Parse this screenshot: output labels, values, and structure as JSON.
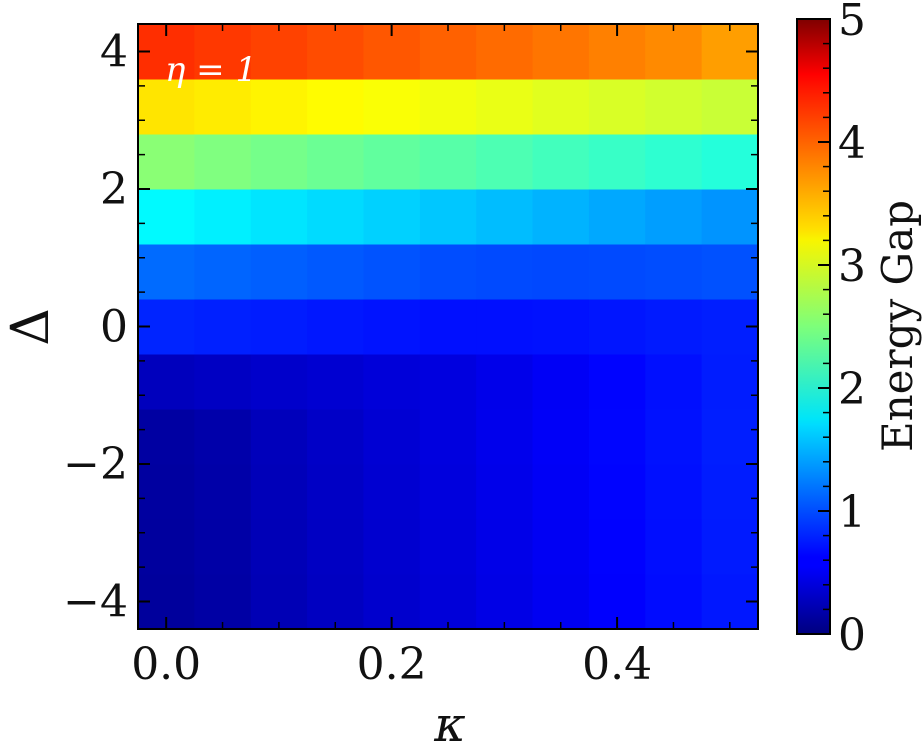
{
  "chart_data": {
    "type": "heatmap",
    "xlabel": "κ",
    "ylabel": "Δ",
    "annotation": "η = 1",
    "colorbar_label": "Energy Gap",
    "colormap": "jet",
    "clim": [
      0,
      5
    ],
    "xlim": [
      -0.025,
      0.525
    ],
    "ylim": [
      -4.4,
      4.4
    ],
    "x_ticks": [
      0.0,
      0.2,
      0.4
    ],
    "x_tick_labels": [
      "0.0",
      "0.2",
      "0.4"
    ],
    "y_ticks": [
      -4,
      -2,
      0,
      2,
      4
    ],
    "y_tick_labels": [
      "−4",
      "−2",
      "0",
      "2",
      "4"
    ],
    "colorbar_ticks": [
      0,
      1,
      2,
      3,
      4,
      5
    ],
    "colorbar_tick_labels": [
      "0",
      "1",
      "2",
      "3",
      "4",
      "5"
    ],
    "x": [
      0.0,
      0.05,
      0.1,
      0.15,
      0.2,
      0.25,
      0.3,
      0.35,
      0.4,
      0.45,
      0.5
    ],
    "y": [
      -4.0,
      -3.2,
      -2.4,
      -1.6,
      -0.8,
      0.0,
      0.8,
      1.6,
      2.4,
      3.2,
      4.0
    ],
    "z": [
      [
        0.14,
        0.18,
        0.26,
        0.32,
        0.38,
        0.44,
        0.5,
        0.56,
        0.62,
        0.68,
        0.74
      ],
      [
        0.15,
        0.19,
        0.27,
        0.33,
        0.39,
        0.45,
        0.51,
        0.57,
        0.63,
        0.69,
        0.75
      ],
      [
        0.16,
        0.2,
        0.28,
        0.34,
        0.4,
        0.46,
        0.52,
        0.58,
        0.64,
        0.7,
        0.76
      ],
      [
        0.17,
        0.21,
        0.29,
        0.35,
        0.41,
        0.47,
        0.53,
        0.59,
        0.65,
        0.71,
        0.77
      ],
      [
        0.3,
        0.33,
        0.37,
        0.4,
        0.44,
        0.47,
        0.52,
        0.58,
        0.64,
        0.7,
        0.76
      ],
      [
        0.8,
        0.78,
        0.76,
        0.74,
        0.72,
        0.7,
        0.7,
        0.71,
        0.73,
        0.75,
        0.77
      ],
      [
        1.15,
        1.12,
        1.09,
        1.06,
        1.03,
        1.0,
        0.99,
        0.98,
        0.99,
        1.0,
        1.02
      ],
      [
        1.85,
        1.8,
        1.75,
        1.7,
        1.65,
        1.6,
        1.55,
        1.5,
        1.45,
        1.4,
        1.35
      ],
      [
        2.55,
        2.5,
        2.45,
        2.4,
        2.35,
        2.3,
        2.25,
        2.2,
        2.15,
        2.1,
        2.05
      ],
      [
        3.25,
        3.22,
        3.18,
        3.14,
        3.1,
        3.06,
        3.02,
        2.98,
        2.94,
        2.9,
        2.86
      ],
      [
        4.15,
        4.1,
        4.05,
        4.0,
        3.95,
        3.9,
        3.85,
        3.8,
        3.75,
        3.7,
        3.6
      ]
    ]
  }
}
